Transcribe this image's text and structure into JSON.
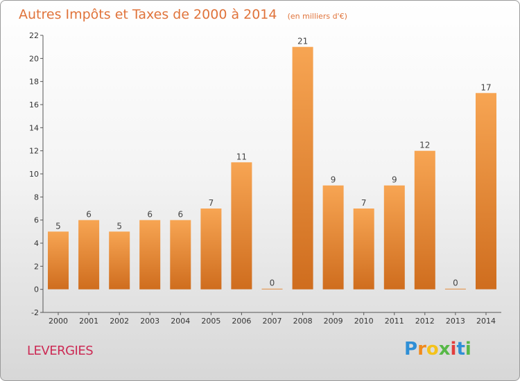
{
  "chart_data": {
    "type": "bar",
    "title": "Autres Impôts et Taxes de 2000 à 2014",
    "subtitle": "(en milliers d'€)",
    "categories": [
      "2000",
      "2001",
      "2002",
      "2003",
      "2004",
      "2005",
      "2006",
      "2007",
      "2008",
      "2009",
      "2010",
      "2011",
      "2012",
      "2013",
      "2014"
    ],
    "values": [
      5,
      6,
      5,
      6,
      6,
      7,
      11,
      0,
      21,
      9,
      7,
      9,
      12,
      0,
      17
    ],
    "ylim": [
      -2,
      22
    ],
    "yticks": [
      "-2",
      "0",
      "2",
      "4",
      "6",
      "8",
      "10",
      "12",
      "14",
      "16",
      "18",
      "20",
      "22"
    ],
    "grid": false,
    "bar_color_top": "#f7a553",
    "bar_color_bottom": "#cf6d1e"
  },
  "commune": "LEVERGIES",
  "logo": {
    "letters": [
      "P",
      "r",
      "o",
      "x",
      "i",
      "t",
      "i"
    ],
    "colors": [
      "#2f8fd6",
      "#f08a1c",
      "#f4c21b",
      "#57b847",
      "#e23d3d",
      "#2f8fd6",
      "#57b847"
    ]
  }
}
